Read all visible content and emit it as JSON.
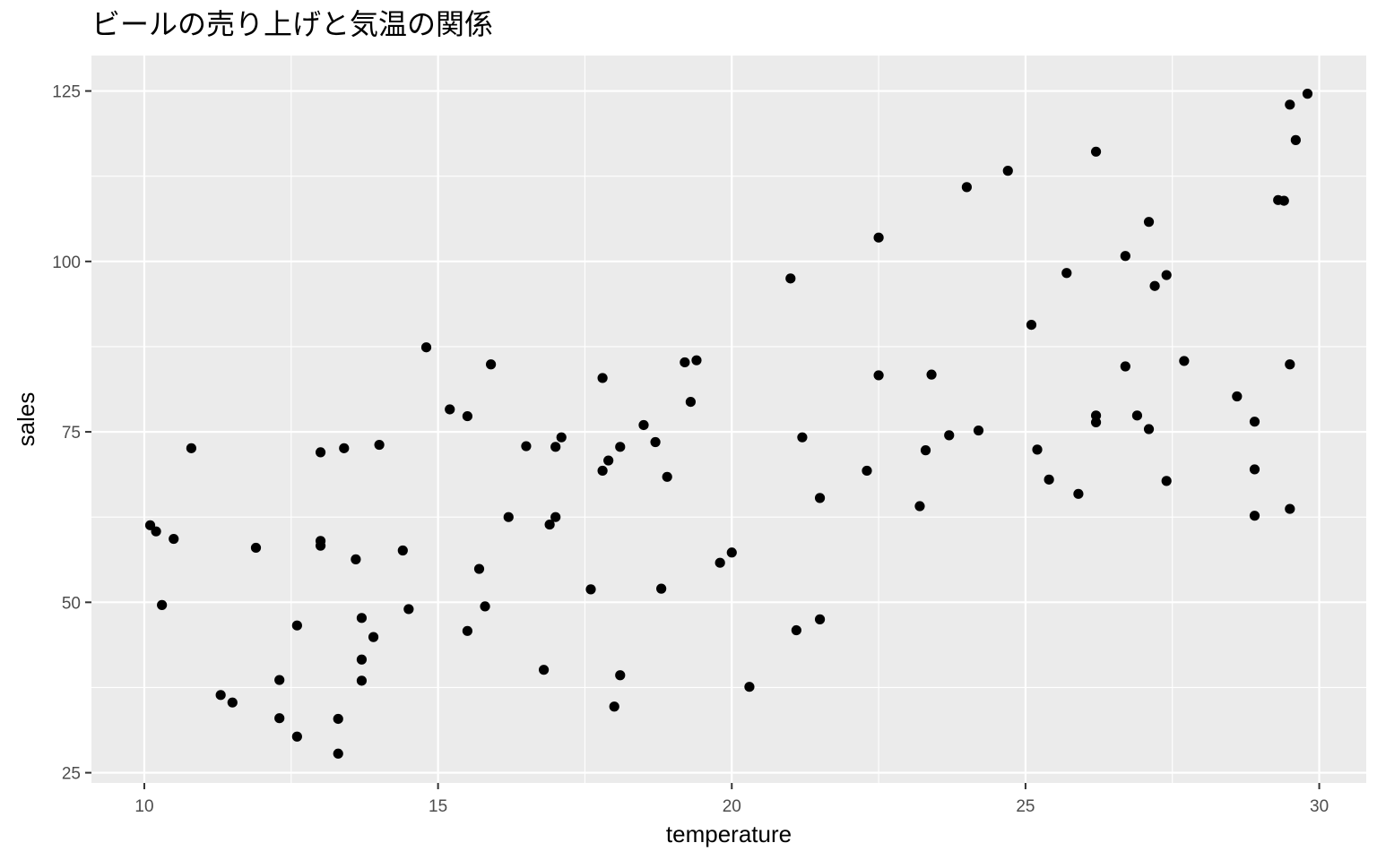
{
  "chart_data": {
    "type": "scatter",
    "title": "ビールの売り上げと気温の関係",
    "xlabel": "temperature",
    "ylabel": "sales",
    "xlim": [
      9.1,
      30.8
    ],
    "ylim": [
      23.5,
      130.2
    ],
    "x_ticks": [
      10,
      15,
      20,
      25,
      30
    ],
    "y_ticks": [
      25,
      50,
      75,
      100,
      125
    ],
    "x_tick_labels": [
      "10",
      "15",
      "20",
      "25",
      "30"
    ],
    "y_tick_labels": [
      "25",
      "50",
      "75",
      "100",
      "125"
    ],
    "grid": true,
    "panel_background": "#ebebeb",
    "grid_color": "#ffffff",
    "point_color": "#000000",
    "points": [
      {
        "x": 10.1,
        "y": 61.3
      },
      {
        "x": 10.2,
        "y": 60.4
      },
      {
        "x": 10.3,
        "y": 49.6
      },
      {
        "x": 10.5,
        "y": 59.3
      },
      {
        "x": 10.8,
        "y": 72.6
      },
      {
        "x": 11.3,
        "y": 36.4
      },
      {
        "x": 11.5,
        "y": 35.3
      },
      {
        "x": 11.9,
        "y": 58.0
      },
      {
        "x": 12.3,
        "y": 38.6
      },
      {
        "x": 12.3,
        "y": 33.0
      },
      {
        "x": 12.6,
        "y": 46.6
      },
      {
        "x": 12.6,
        "y": 30.3
      },
      {
        "x": 13.0,
        "y": 72.0
      },
      {
        "x": 13.0,
        "y": 59.0
      },
      {
        "x": 13.0,
        "y": 58.3
      },
      {
        "x": 13.3,
        "y": 32.9
      },
      {
        "x": 13.3,
        "y": 27.8
      },
      {
        "x": 13.4,
        "y": 72.6
      },
      {
        "x": 13.6,
        "y": 56.3
      },
      {
        "x": 13.7,
        "y": 47.7
      },
      {
        "x": 13.7,
        "y": 41.6
      },
      {
        "x": 13.7,
        "y": 38.5
      },
      {
        "x": 13.9,
        "y": 44.9
      },
      {
        "x": 14.0,
        "y": 73.1
      },
      {
        "x": 14.4,
        "y": 57.6
      },
      {
        "x": 14.5,
        "y": 49.0
      },
      {
        "x": 14.8,
        "y": 87.4
      },
      {
        "x": 15.2,
        "y": 78.3
      },
      {
        "x": 15.5,
        "y": 77.3
      },
      {
        "x": 15.5,
        "y": 45.8
      },
      {
        "x": 15.7,
        "y": 54.9
      },
      {
        "x": 15.8,
        "y": 49.4
      },
      {
        "x": 15.9,
        "y": 84.9
      },
      {
        "x": 16.2,
        "y": 62.5
      },
      {
        "x": 16.5,
        "y": 72.9
      },
      {
        "x": 16.8,
        "y": 40.1
      },
      {
        "x": 16.9,
        "y": 61.4
      },
      {
        "x": 17.0,
        "y": 72.8
      },
      {
        "x": 17.0,
        "y": 62.5
      },
      {
        "x": 17.1,
        "y": 74.2
      },
      {
        "x": 17.6,
        "y": 51.9
      },
      {
        "x": 17.8,
        "y": 82.9
      },
      {
        "x": 17.8,
        "y": 69.3
      },
      {
        "x": 17.9,
        "y": 70.8
      },
      {
        "x": 18.0,
        "y": 34.7
      },
      {
        "x": 18.1,
        "y": 72.8
      },
      {
        "x": 18.1,
        "y": 39.3
      },
      {
        "x": 18.5,
        "y": 76.0
      },
      {
        "x": 18.7,
        "y": 73.5
      },
      {
        "x": 18.8,
        "y": 52.0
      },
      {
        "x": 18.9,
        "y": 68.4
      },
      {
        "x": 19.2,
        "y": 85.2
      },
      {
        "x": 19.3,
        "y": 79.4
      },
      {
        "x": 19.4,
        "y": 85.5
      },
      {
        "x": 19.8,
        "y": 55.8
      },
      {
        "x": 20.0,
        "y": 57.3
      },
      {
        "x": 20.3,
        "y": 37.6
      },
      {
        "x": 21.0,
        "y": 97.5
      },
      {
        "x": 21.1,
        "y": 45.9
      },
      {
        "x": 21.2,
        "y": 74.2
      },
      {
        "x": 21.5,
        "y": 65.3
      },
      {
        "x": 21.5,
        "y": 47.5
      },
      {
        "x": 22.3,
        "y": 69.3
      },
      {
        "x": 22.5,
        "y": 103.5
      },
      {
        "x": 22.5,
        "y": 83.3
      },
      {
        "x": 23.2,
        "y": 64.1
      },
      {
        "x": 23.3,
        "y": 72.3
      },
      {
        "x": 23.4,
        "y": 83.4
      },
      {
        "x": 23.7,
        "y": 74.5
      },
      {
        "x": 24.0,
        "y": 110.9
      },
      {
        "x": 24.2,
        "y": 75.2
      },
      {
        "x": 24.7,
        "y": 113.3
      },
      {
        "x": 25.1,
        "y": 90.7
      },
      {
        "x": 25.2,
        "y": 72.4
      },
      {
        "x": 25.4,
        "y": 68.0
      },
      {
        "x": 25.7,
        "y": 98.3
      },
      {
        "x": 25.9,
        "y": 65.9
      },
      {
        "x": 26.2,
        "y": 116.1
      },
      {
        "x": 26.2,
        "y": 77.4
      },
      {
        "x": 26.2,
        "y": 76.4
      },
      {
        "x": 26.7,
        "y": 100.8
      },
      {
        "x": 26.7,
        "y": 84.6
      },
      {
        "x": 26.9,
        "y": 77.4
      },
      {
        "x": 27.1,
        "y": 105.8
      },
      {
        "x": 27.1,
        "y": 75.4
      },
      {
        "x": 27.2,
        "y": 96.4
      },
      {
        "x": 27.4,
        "y": 98.0
      },
      {
        "x": 27.4,
        "y": 67.8
      },
      {
        "x": 27.7,
        "y": 85.4
      },
      {
        "x": 28.6,
        "y": 80.2
      },
      {
        "x": 28.9,
        "y": 76.5
      },
      {
        "x": 28.9,
        "y": 69.5
      },
      {
        "x": 28.9,
        "y": 62.7
      },
      {
        "x": 29.3,
        "y": 109.0
      },
      {
        "x": 29.4,
        "y": 108.9
      },
      {
        "x": 29.5,
        "y": 123.0
      },
      {
        "x": 29.5,
        "y": 84.9
      },
      {
        "x": 29.5,
        "y": 63.7
      },
      {
        "x": 29.6,
        "y": 117.8
      },
      {
        "x": 29.8,
        "y": 124.6
      }
    ]
  }
}
